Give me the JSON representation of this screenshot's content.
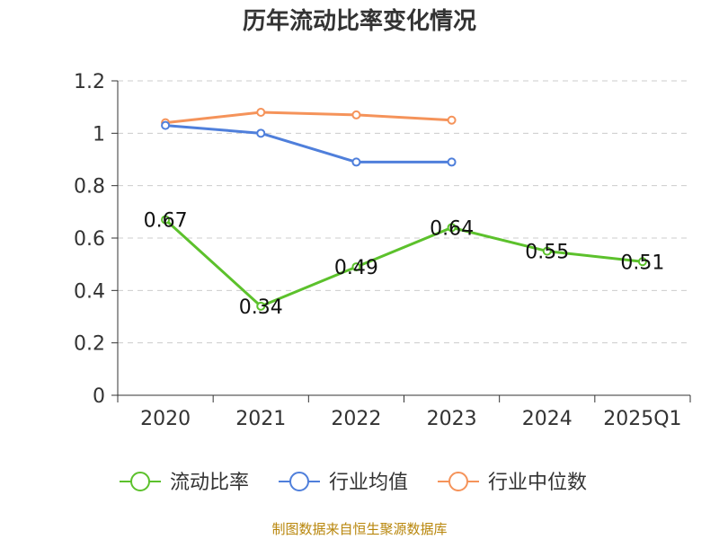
{
  "chart_data": {
    "type": "line",
    "title": "历年流动比率变化情况",
    "categories": [
      "2020",
      "2021",
      "2022",
      "2023",
      "2024",
      "2025Q1"
    ],
    "ylim": [
      0,
      1.2
    ],
    "yticks": [
      "0",
      "0.2",
      "0.4",
      "0.6",
      "0.8",
      "1",
      "1.2"
    ],
    "ytick_values": [
      0,
      0.2,
      0.4,
      0.6,
      0.8,
      1.0,
      1.2
    ],
    "grid": true,
    "legend_position": "bottom",
    "series": [
      {
        "name": "流动比率",
        "color": "#5cc12c",
        "values": [
          0.67,
          0.34,
          0.49,
          0.64,
          0.55,
          0.51
        ],
        "labels": [
          "0.67",
          "0.34",
          "0.49",
          "0.64",
          "0.55",
          "0.51"
        ],
        "show_labels": true
      },
      {
        "name": "行业均值",
        "color": "#4f7fdb",
        "values": [
          1.03,
          1.0,
          0.89,
          0.89,
          null,
          null
        ],
        "show_labels": false
      },
      {
        "name": "行业中位数",
        "color": "#f5935a",
        "values": [
          1.04,
          1.08,
          1.07,
          1.05,
          null,
          null
        ],
        "show_labels": false
      }
    ],
    "source": "制图数据来自恒生聚源数据库"
  }
}
